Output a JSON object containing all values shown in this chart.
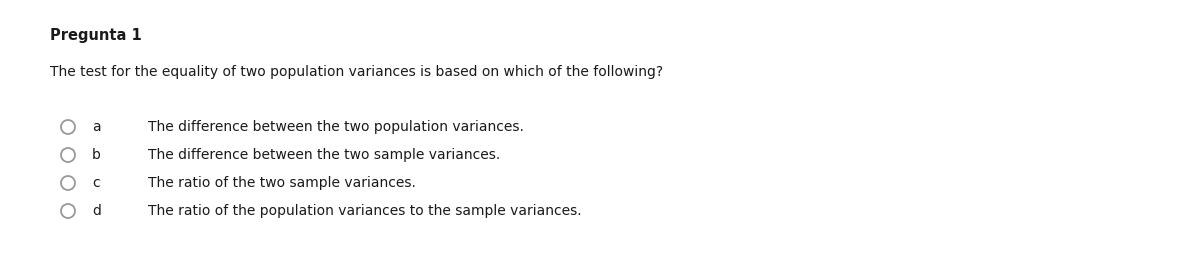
{
  "title": "Pregunta 1",
  "question": "The test for the equality of two population variances is based on which of the following?",
  "options": [
    {
      "label": "a",
      "text": "The difference between the two population variances."
    },
    {
      "label": "b",
      "text": "The difference between the two sample variances."
    },
    {
      "label": "c",
      "text": "The ratio of the two sample variances."
    },
    {
      "label": "d",
      "text": "The ratio of the population variances to the sample variances."
    }
  ],
  "background_color": "#ffffff",
  "title_color": "#1a1a1a",
  "question_color": "#1a1a1a",
  "option_label_color": "#1a1a1a",
  "option_text_color": "#1a1a1a",
  "circle_edgecolor": "#999999",
  "title_fontsize": 10.5,
  "question_fontsize": 10,
  "option_fontsize": 10,
  "fig_width": 12.0,
  "fig_height": 2.6,
  "dpi": 100
}
